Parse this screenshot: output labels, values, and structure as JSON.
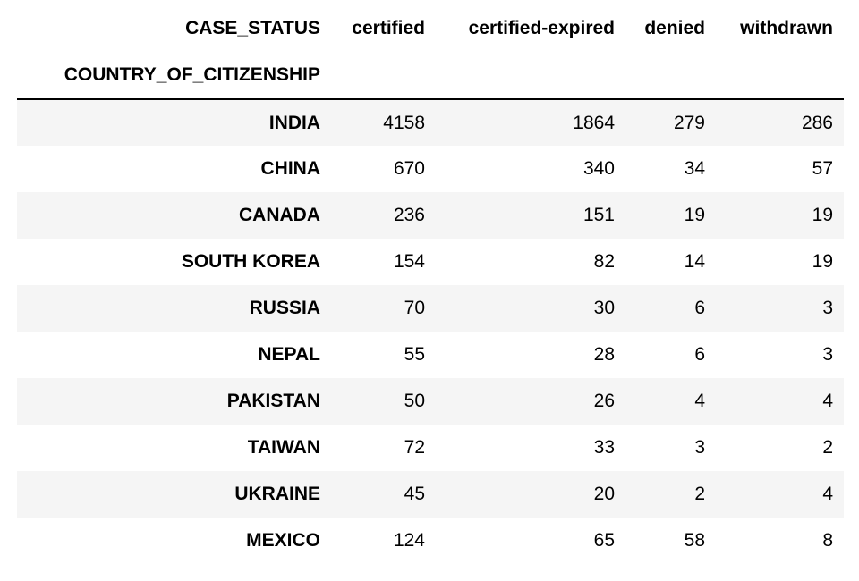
{
  "table": {
    "columns_name": "CASE_STATUS",
    "index_name": "COUNTRY_OF_CITIZENSHIP",
    "columns": [
      "certified",
      "certified-expired",
      "denied",
      "withdrawn"
    ],
    "rows": [
      {
        "country": "INDIA",
        "values": [
          "4158",
          "1864",
          "279",
          "286"
        ]
      },
      {
        "country": "CHINA",
        "values": [
          "670",
          "340",
          "34",
          "57"
        ]
      },
      {
        "country": "CANADA",
        "values": [
          "236",
          "151",
          "19",
          "19"
        ]
      },
      {
        "country": "SOUTH KOREA",
        "values": [
          "154",
          "82",
          "14",
          "19"
        ]
      },
      {
        "country": "RUSSIA",
        "values": [
          "70",
          "30",
          "6",
          "3"
        ]
      },
      {
        "country": "NEPAL",
        "values": [
          "55",
          "28",
          "6",
          "3"
        ]
      },
      {
        "country": "PAKISTAN",
        "values": [
          "50",
          "26",
          "4",
          "4"
        ]
      },
      {
        "country": "TAIWAN",
        "values": [
          "72",
          "33",
          "3",
          "2"
        ]
      },
      {
        "country": "UKRAINE",
        "values": [
          "45",
          "20",
          "2",
          "4"
        ]
      },
      {
        "country": "MEXICO",
        "values": [
          "124",
          "65",
          "58",
          "8"
        ]
      }
    ]
  },
  "colors": {
    "stripe": "#f5f5f5",
    "background": "#ffffff",
    "text": "#000000",
    "header_rule": "#000000"
  }
}
